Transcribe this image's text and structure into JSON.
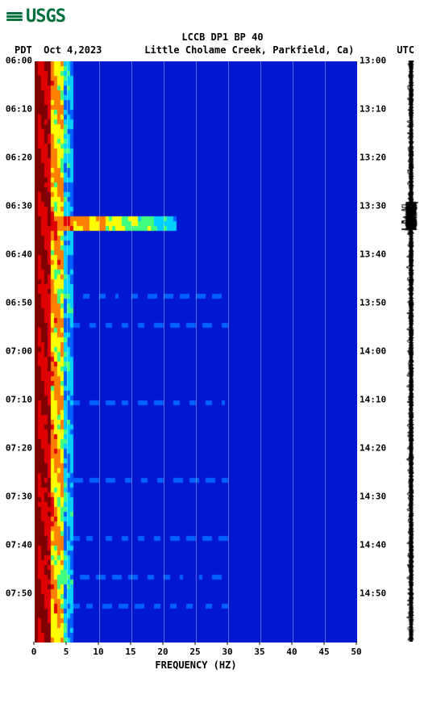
{
  "branding": {
    "logo_text": "USGS",
    "logo_color": "#00703c"
  },
  "chart": {
    "type": "spectrogram",
    "title": "LCCB DP1 BP 40",
    "location_line": "Little Cholame Creek, Parkfield, Ca)",
    "tz_left": "PDT",
    "date_left": "Oct 4,2023",
    "tz_right": "UTC",
    "x_label": "FREQUENCY (HZ)",
    "x_ticks": [
      0,
      5,
      10,
      15,
      20,
      25,
      30,
      35,
      40,
      45,
      50
    ],
    "xlim": [
      0,
      50
    ],
    "left_ticks": [
      "06:00",
      "06:10",
      "06:20",
      "06:30",
      "06:40",
      "06:50",
      "07:00",
      "07:10",
      "07:20",
      "07:30",
      "07:40",
      "07:50"
    ],
    "right_ticks": [
      "13:00",
      "13:10",
      "13:20",
      "13:30",
      "13:40",
      "13:50",
      "14:00",
      "14:10",
      "14:20",
      "14:30",
      "14:40",
      "14:50"
    ],
    "time_rows": 120,
    "gridline_color": "rgba(255,255,255,0.35)",
    "colors": {
      "deep_blue": "#0000a8",
      "blue": "#0018d0",
      "lt_blue": "#0060ff",
      "cyan": "#00d0ff",
      "green": "#40ff80",
      "yellow": "#ffff00",
      "orange": "#ff8000",
      "red": "#e00000",
      "dark_red": "#800000"
    },
    "low_freq_band_hz": 6,
    "event": {
      "time_row": 32,
      "span_rows": 3,
      "extent_hz": 22
    },
    "faint_bands_rows": [
      48,
      54,
      70,
      86,
      98,
      106,
      112
    ],
    "seismogram": {
      "color": "#000000",
      "background": "#ffffff",
      "base_amp": 3,
      "event_row": 32,
      "event_amp": 10
    }
  }
}
